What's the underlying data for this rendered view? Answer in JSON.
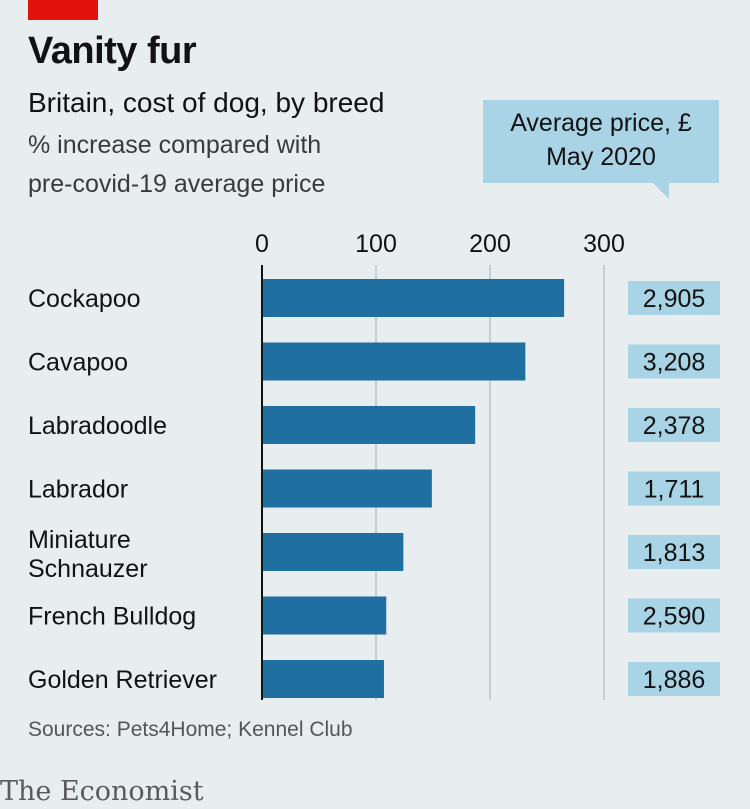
{
  "header": {
    "title": "Vanity fur",
    "subtitle": "Britain, cost of dog, by breed",
    "description_line1": "% increase compared with",
    "description_line2": "pre-covid-19 average price",
    "price_header_line1": "Average price, £",
    "price_header_line2": "May 2020"
  },
  "footer": {
    "source": "Sources: Pets4Home; Kennel Club",
    "logo": "The Economist"
  },
  "colors": {
    "bar": "#1f6fa0",
    "price_box": "#a9d4e6",
    "background": "#e8edf0",
    "accent": "#e3120b"
  },
  "chart_data": {
    "type": "bar",
    "orientation": "horizontal",
    "categories": [
      "Cockapoo",
      "Cavapoo",
      "Labradoodle",
      "Labrador",
      "Miniature Schnauzer",
      "French Bulldog",
      "Golden Retriever"
    ],
    "values": [
      265,
      231,
      187,
      149,
      124,
      109,
      107
    ],
    "xlim": [
      0,
      300
    ],
    "xticks": [
      "0",
      "100",
      "200",
      "300"
    ],
    "grid": true,
    "price_labels": [
      "2,905",
      "3,208",
      "2,378",
      "1,711",
      "1,813",
      "2,590",
      "1,886"
    ]
  }
}
